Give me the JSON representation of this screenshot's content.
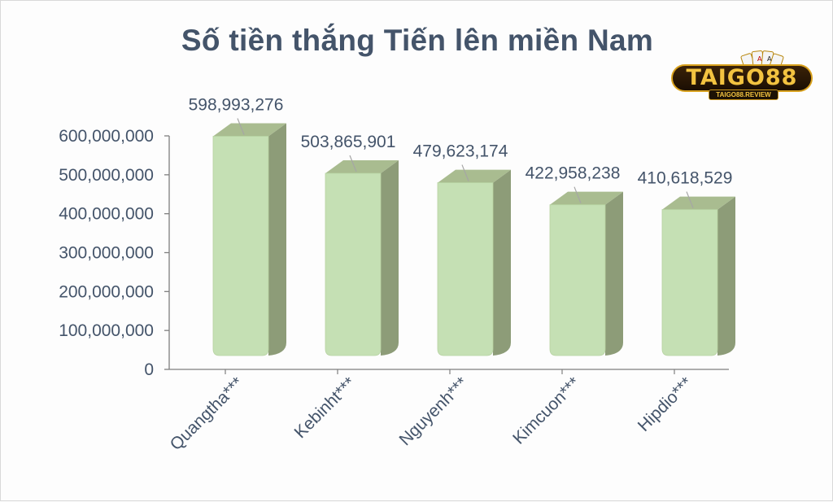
{
  "chart_data": {
    "type": "bar",
    "title": "Số tiền thắng Tiến lên miền Nam",
    "categories": [
      "Quangtha***",
      "Kebinht***",
      "Nguyenh***",
      "Kimcuon***",
      "Hipdio***"
    ],
    "values": [
      598993276,
      503865901,
      479623174,
      422958238,
      410618529
    ],
    "value_labels": [
      "598,993,276",
      "503,865,901",
      "479,623,174",
      "422,958,238",
      "410,618,529"
    ],
    "y_ticks": [
      "0",
      "100,000,000",
      "200,000,000",
      "300,000,000",
      "400,000,000",
      "500,000,000",
      "600,000,000"
    ],
    "ylim": [
      0,
      600000000
    ],
    "xlabel": "",
    "ylabel": "",
    "bar_style": "3d-cylinder",
    "colors": {
      "bar_front": "#c5e0b4",
      "bar_side": "#8d9c78",
      "bar_top": "#a9bc90",
      "text": "#44546a",
      "axis": "#7f7f7f"
    },
    "grid": false,
    "legend": "none"
  },
  "logo": {
    "text": "TAIGO88",
    "subtext": "TAIGO88.REVIEW",
    "icon": "playing-cards-icon"
  }
}
